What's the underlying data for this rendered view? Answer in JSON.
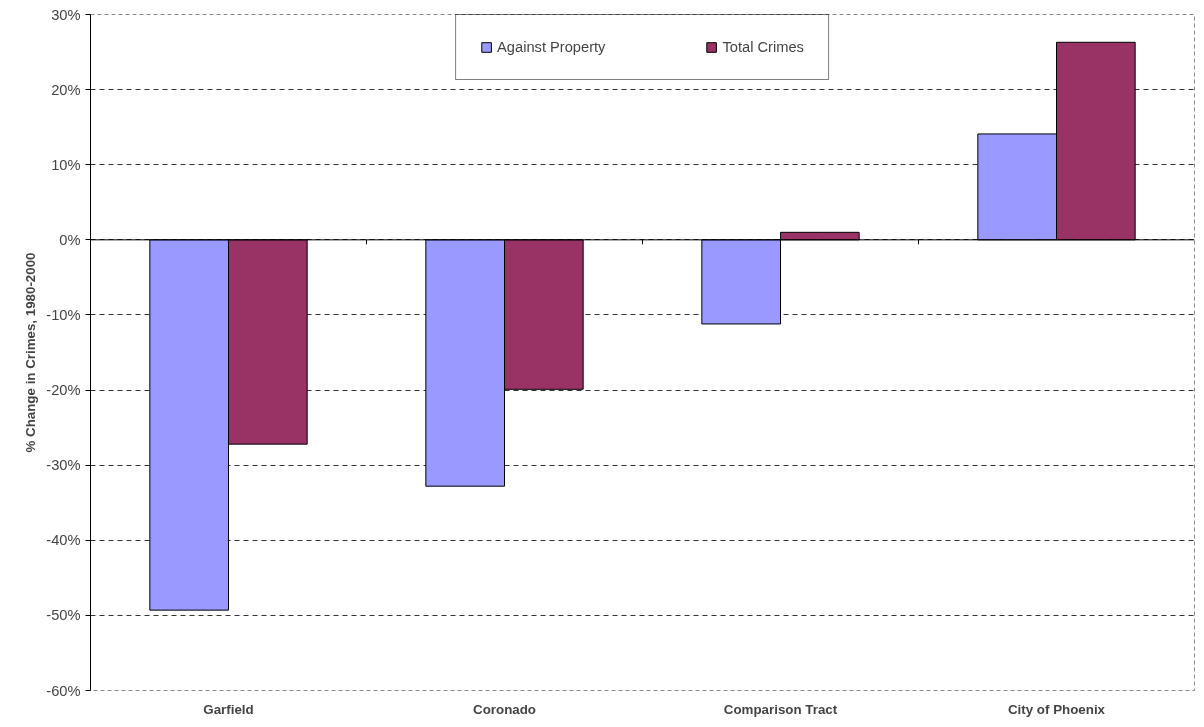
{
  "chart_data": {
    "type": "bar",
    "ylabel": "% Change in Crimes, 1980-2000",
    "categories": [
      "Garfield",
      "Coronado",
      "Comparison Tract",
      "City of Phoenix"
    ],
    "series": [
      {
        "name": "Against Property",
        "color": "#9999ff",
        "values": [
          -49.3,
          -32.8,
          -11.2,
          14.1
        ]
      },
      {
        "name": "Total Crimes",
        "color": "#993366",
        "values": [
          -27.2,
          -19.9,
          1.0,
          26.3
        ]
      }
    ],
    "ylim": [
      -60,
      30
    ],
    "yticks": [
      {
        "value": -60,
        "label": "-60%"
      },
      {
        "value": -50,
        "label": "-50%"
      },
      {
        "value": -40,
        "label": "-40%"
      },
      {
        "value": -30,
        "label": "-30%"
      },
      {
        "value": -20,
        "label": "-20%"
      },
      {
        "value": -10,
        "label": "-10%"
      },
      {
        "value": 0,
        "label": "0%"
      },
      {
        "value": 10,
        "label": "10%"
      },
      {
        "value": 20,
        "label": "20%"
      },
      {
        "value": 30,
        "label": "30%"
      }
    ],
    "grid": "y",
    "legend": "top"
  }
}
